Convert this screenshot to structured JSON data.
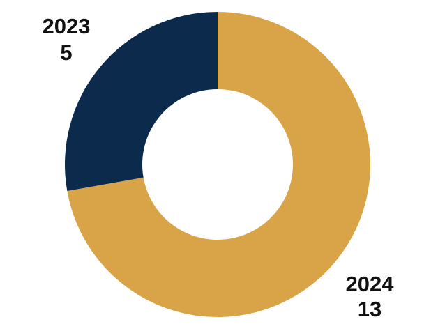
{
  "chart_data": {
    "type": "pie",
    "donut": true,
    "categories": [
      "2023",
      "2024"
    ],
    "values": [
      5,
      13
    ],
    "colors": [
      "#0c2a4c",
      "#d9a448"
    ],
    "legend": "none",
    "labels": [
      {
        "category": "2023",
        "value": "5"
      },
      {
        "category": "2024",
        "value": "13"
      }
    ]
  }
}
